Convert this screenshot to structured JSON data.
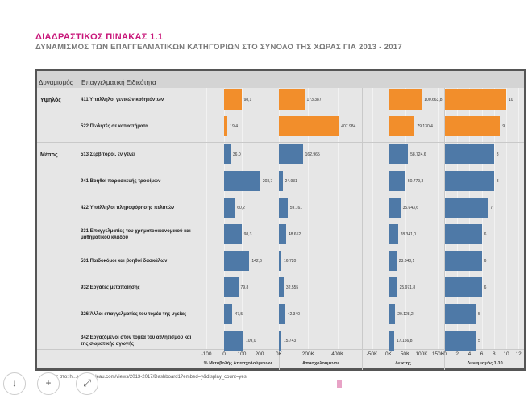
{
  "title": "ΔΙΑΔΡΑΣΤΙΚΟΣ ΠΙΝΑΚΑΣ 1.1",
  "subtitle": "ΔΥΝΑΜΙΣΜΟΣ ΤΩΝ ΕΠΑΓΓΕΛΜΑΤΙΚΩΝ ΚΑΤΗΓΟΡΙΩΝ ΣΤΟ ΣΥΝΟΛΟ ΤΗΣ ΧΩΡΑΣ ΓΙΑ 2013 - 2017",
  "header": {
    "col1": "Δυναμισμός",
    "col2": "Επαγγελματική Ειδικότητα"
  },
  "footer": "…ος στο: h…ublic.tableau.com/views/2013-2017/Dashboard1?embed=y&display_count=yes",
  "colors": {
    "high": "#f28e2b",
    "medium": "#4e79a7"
  },
  "chart_data": {
    "type": "bar",
    "groups": [
      "Υψηλός",
      "Μέσος"
    ],
    "rows": [
      {
        "group": "Υψηλός",
        "label": "411 Υπάλληλοι γενικών καθηκόντων",
        "pct": 98.1,
        "pct_label": "98,1",
        "emp": 173387,
        "emp_label": "173.387",
        "idx": 100663.8,
        "idx_label": "100.663,8",
        "dyn": 10,
        "dyn_label": "10"
      },
      {
        "group": "Υψηλός",
        "label": "522 Πωλητές σε καταστήματα",
        "pct": 19.4,
        "pct_label": "19,4",
        "emp": 407984,
        "emp_label": "407.984",
        "idx": 79130.4,
        "idx_label": "79.130,4",
        "dyn": 9,
        "dyn_label": "9"
      },
      {
        "group": "Μέσος",
        "label": "513 Σερβιτόροι, εν γένει",
        "pct": 36.0,
        "pct_label": "36,0",
        "emp": 162965,
        "emp_label": "162.965",
        "idx": 58724.6,
        "idx_label": "58.724,6",
        "dyn": 8,
        "dyn_label": "8"
      },
      {
        "group": "Μέσος",
        "label": "941 Βοηθοί παρασκευής τροφίμων",
        "pct": 203.7,
        "pct_label": "203,7",
        "emp": 24931,
        "emp_label": "24.931",
        "idx": 50779.3,
        "idx_label": "50.779,3",
        "dyn": 8,
        "dyn_label": "8"
      },
      {
        "group": "Μέσος",
        "label": "422 Υπάλληλοι πληροφόρησης πελατών",
        "pct": 60.2,
        "pct_label": "60,2",
        "emp": 59161,
        "emp_label": "59.161",
        "idx": 35643.6,
        "idx_label": "35.643,6",
        "dyn": 7,
        "dyn_label": "7"
      },
      {
        "group": "Μέσος",
        "label": "331 Επαγγελματίες του χρηματοοικονομικού και μαθηματικού κλάδου",
        "pct": 98.3,
        "pct_label": "98,3",
        "emp": 48652,
        "emp_label": "48.652",
        "idx": 28341.0,
        "idx_label": "28.341,0",
        "dyn": 6,
        "dyn_label": "6"
      },
      {
        "group": "Μέσος",
        "label": "531 Παιδοκόμοι και βοηθοί δασκάλων",
        "pct": 142.6,
        "pct_label": "142,6",
        "emp": 16720,
        "emp_label": "16.720",
        "idx": 23848.1,
        "idx_label": "23.848,1",
        "dyn": 6,
        "dyn_label": "6"
      },
      {
        "group": "Μέσος",
        "label": "932 Εργάτες μεταποίησης",
        "pct": 79.8,
        "pct_label": "79,8",
        "emp": 32555,
        "emp_label": "32.555",
        "idx": 25971.8,
        "idx_label": "25.971,8",
        "dyn": 6,
        "dyn_label": "6"
      },
      {
        "group": "Μέσος",
        "label": "226 Άλλοι επαγγελματίες του τομέα της υγείας",
        "pct": 47.5,
        "pct_label": "47,5",
        "emp": 42340,
        "emp_label": "42.340",
        "idx": 20128.2,
        "idx_label": "20.128,2",
        "dyn": 5,
        "dyn_label": "5"
      },
      {
        "group": "Μέσος",
        "label": "342 Εργαζόμενοι στον τομέα του αθλητισμού και της σωματικής αγωγής",
        "pct": 109.0,
        "pct_label": "109,0",
        "emp": 15743,
        "emp_label": "15.743",
        "idx": 17156.8,
        "idx_label": "17.156,8",
        "dyn": 5,
        "dyn_label": "5"
      }
    ],
    "axes": [
      {
        "title": "% Μεταβολής Απασχολούμενων",
        "ticks": [
          "-100",
          "0",
          "100",
          "200"
        ],
        "tick_values": [
          -100,
          0,
          100,
          200
        ]
      },
      {
        "title": "Απασχολούμενοι",
        "ticks": [
          "0K",
          "200K",
          "400K"
        ],
        "tick_values": [
          0,
          200000,
          400000
        ]
      },
      {
        "title": "Δείκτης",
        "ticks": [
          "-50K",
          "0K",
          "50K",
          "100K",
          "150K"
        ],
        "tick_values": [
          -50000,
          0,
          50000,
          100000,
          150000
        ]
      },
      {
        "title": "Δυναμισμός 1-10",
        "ticks": [
          "0",
          "2",
          "4",
          "6",
          "8",
          "10",
          "12"
        ],
        "tick_values": [
          0,
          2,
          4,
          6,
          8,
          10,
          12
        ]
      }
    ]
  }
}
